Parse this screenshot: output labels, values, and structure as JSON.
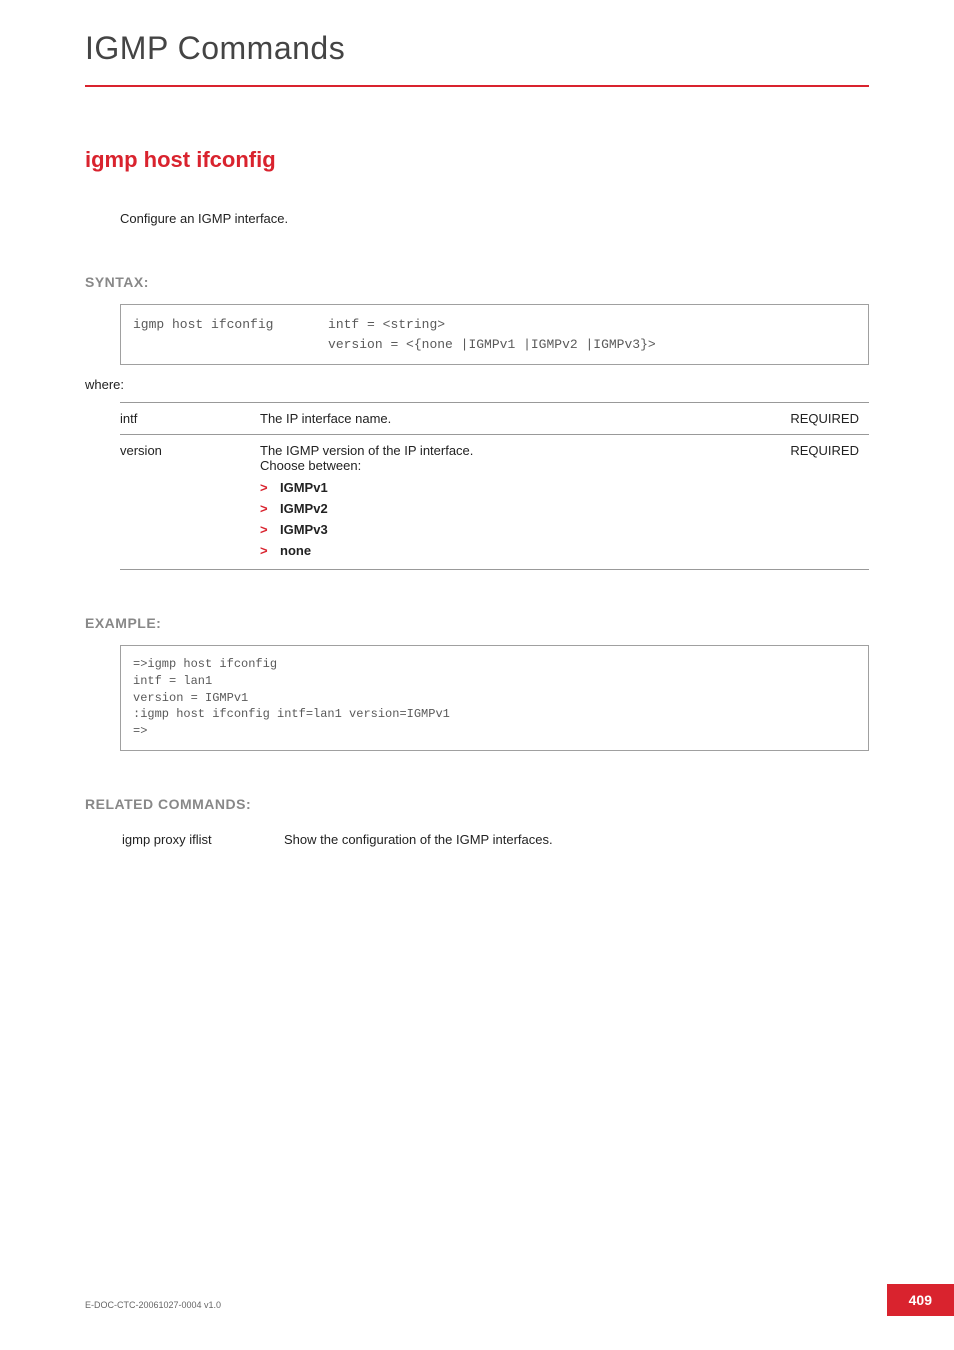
{
  "header": {
    "title": "IGMP Commands",
    "rule_color": "#d9232e"
  },
  "command": {
    "title": "igmp host ifconfig",
    "title_color": "#d9232e",
    "title_fontsize": 22,
    "description": "Configure an IGMP interface."
  },
  "syntax": {
    "heading": "SYNTAX:",
    "code_line1": "igmp host ifconfig       intf = <string>",
    "code_line2": "                         version = <{none |IGMPv1 |IGMPv2 |IGMPv3}>",
    "where": "where:",
    "params": [
      {
        "name": "intf",
        "desc": "The IP interface name.",
        "required": "REQUIRED",
        "options": []
      },
      {
        "name": "version",
        "desc": "The IGMP version of the IP interface.",
        "desc_line2": "Choose between:",
        "required": "REQUIRED",
        "options": [
          "IGMPv1",
          "IGMPv2",
          "IGMPv3",
          "none"
        ]
      }
    ]
  },
  "example": {
    "heading": "EXAMPLE:",
    "code": "=>igmp host ifconfig\nintf = lan1\nversion = IGMPv1\n:igmp host ifconfig intf=lan1 version=IGMPv1\n=>"
  },
  "related": {
    "heading": "RELATED COMMANDS:",
    "items": [
      {
        "cmd": "igmp proxy iflist",
        "desc": "Show the configuration of the IGMP interfaces."
      }
    ]
  },
  "footer": {
    "doc_id": "E-DOC-CTC-20061027-0004 v1.0",
    "page_number": "409",
    "page_bg": "#d9232e"
  },
  "colors": {
    "accent": "#d9232e",
    "heading_gray": "#888888",
    "text": "#222222",
    "code_text": "#5a5a5a",
    "border": "#a0a0a0",
    "rule": "#999999"
  },
  "typography": {
    "body_font": "Arial, Helvetica, sans-serif",
    "code_font": "Courier New, monospace",
    "header_fontsize": 32,
    "section_heading_fontsize": 14,
    "body_fontsize": 13
  }
}
